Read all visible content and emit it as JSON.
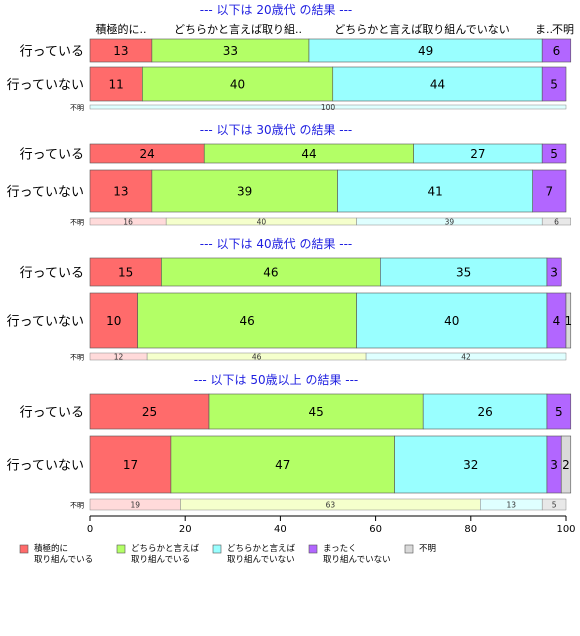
{
  "chart_data": {
    "type": "bar",
    "orientation": "horizontal",
    "stacked": true,
    "normalized_percent": true,
    "xlim": [
      0,
      100
    ],
    "x_ticks": [
      0,
      20,
      40,
      60,
      80,
      100
    ],
    "category_labels": [
      "積極的に..",
      "どちらかと言えば取り組..",
      "どちらかと言えば取り組んでいない",
      "ま..",
      "不明"
    ],
    "legend": [
      {
        "label": "積極的に\n取り組んでいる",
        "color": "#FF6B6B"
      },
      {
        "label": "どちらかと言えば\n取り組んでいる",
        "color": "#B3FF66"
      },
      {
        "label": "どちらかと言えば\n取り組んでいない",
        "color": "#99FFFF"
      },
      {
        "label": "まったく\n取り組んでいない",
        "color": "#B266FF"
      },
      {
        "label": "不明",
        "color": "#D9D9D9"
      }
    ],
    "legend_position": "bottom",
    "groups": [
      {
        "title": "--- 以下は 20歳代 の結果 ---",
        "rows": [
          {
            "label": "行っている",
            "values": [
              13,
              33,
              49,
              6,
              0
            ],
            "value_labels": [
              "13",
              "33",
              "49",
              "6",
              ""
            ]
          },
          {
            "label": "行っていない",
            "values": [
              11,
              40,
              44,
              5,
              0
            ],
            "value_labels": [
              "11",
              "40",
              "44",
              "5",
              ""
            ]
          }
        ],
        "unknown": {
          "label": "不明",
          "values": [
            0,
            0,
            100,
            0,
            0
          ],
          "value_labels": [
            "",
            "",
            "100",
            "",
            ""
          ]
        }
      },
      {
        "title": "--- 以下は 30歳代 の結果 ---",
        "rows": [
          {
            "label": "行っている",
            "values": [
              24,
              44,
              27,
              5,
              0
            ],
            "value_labels": [
              "24",
              "44",
              "27",
              "5",
              ""
            ]
          },
          {
            "label": "行っていない",
            "values": [
              13,
              39,
              41,
              7,
              0
            ],
            "value_labels": [
              "13",
              "39",
              "41",
              "7",
              ""
            ]
          }
        ],
        "unknown": {
          "label": "不明",
          "values": [
            16,
            40,
            39,
            0,
            6
          ],
          "value_labels": [
            "16",
            "40",
            "39",
            "",
            "6"
          ]
        }
      },
      {
        "title": "--- 以下は 40歳代 の結果 ---",
        "rows": [
          {
            "label": "行っている",
            "values": [
              15,
              46,
              35,
              3,
              0
            ],
            "value_labels": [
              "15",
              "46",
              "35",
              "3",
              ""
            ]
          },
          {
            "label": "行っていない",
            "values": [
              10,
              46,
              40,
              4,
              1
            ],
            "value_labels": [
              "10",
              "46",
              "40",
              "4",
              "1"
            ]
          }
        ],
        "unknown": {
          "label": "不明",
          "values": [
            12,
            46,
            42,
            0,
            0
          ],
          "value_labels": [
            "12",
            "46",
            "42",
            "",
            ""
          ]
        }
      },
      {
        "title": "--- 以下は 50歳以上 の結果 ---",
        "rows": [
          {
            "label": "行っている",
            "values": [
              25,
              45,
              26,
              5,
              0
            ],
            "value_labels": [
              "25",
              "45",
              "26",
              "5",
              ""
            ]
          },
          {
            "label": "行っていない",
            "values": [
              17,
              47,
              32,
              3,
              2
            ],
            "value_labels": [
              "17",
              "47",
              "32",
              "3",
              "2"
            ]
          }
        ],
        "unknown": {
          "label": "不明",
          "values": [
            19,
            63,
            13,
            0,
            5
          ],
          "value_labels": [
            "19",
            "63",
            "13",
            "",
            "5"
          ]
        }
      }
    ]
  }
}
